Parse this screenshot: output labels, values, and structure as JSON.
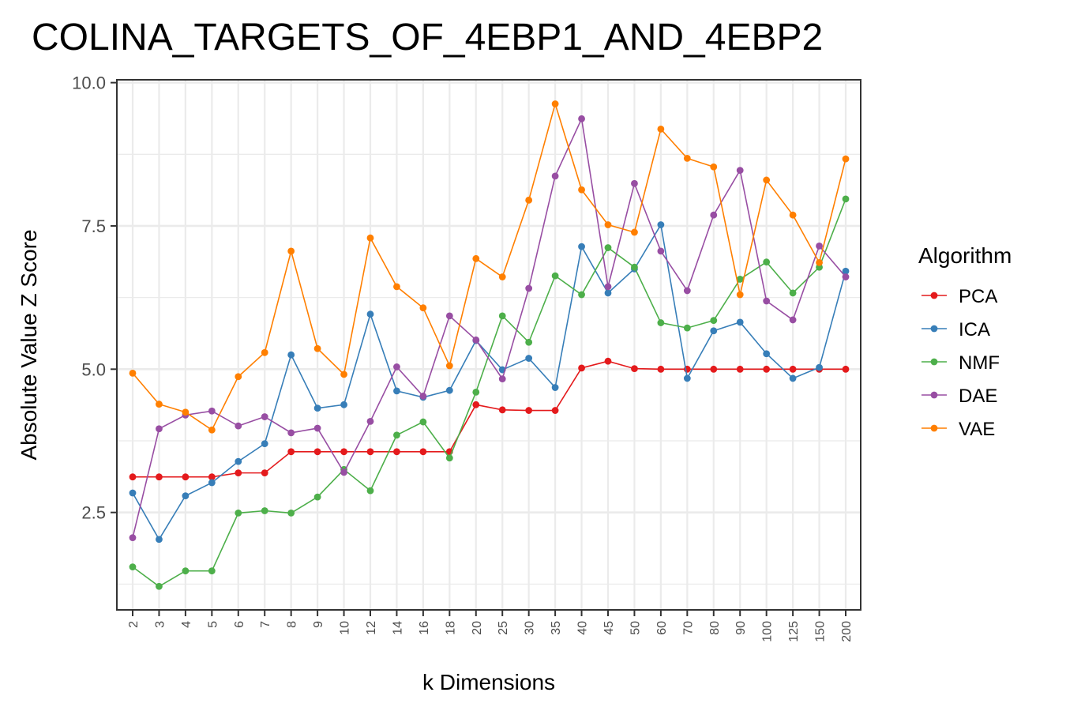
{
  "chart_data": {
    "type": "line",
    "title": "COLINA_TARGETS_OF_4EBP1_AND_4EBP2",
    "xlabel": "k Dimensions",
    "ylabel": "Absolute Value Z Score",
    "categories": [
      "2",
      "3",
      "4",
      "5",
      "6",
      "7",
      "8",
      "9",
      "10",
      "12",
      "14",
      "16",
      "18",
      "20",
      "25",
      "30",
      "35",
      "40",
      "45",
      "50",
      "60",
      "70",
      "80",
      "90",
      "100",
      "125",
      "150",
      "200"
    ],
    "yticks": [
      "2.5",
      "5.0",
      "7.5",
      "10.0"
    ],
    "ylim": [
      0.8,
      10.05
    ],
    "grid": true,
    "legend": {
      "title": "Algorithm",
      "position": "right"
    },
    "series": [
      {
        "name": "PCA",
        "color": "#e41a1c",
        "values": [
          3.12,
          3.12,
          3.12,
          3.12,
          3.19,
          3.19,
          3.56,
          3.56,
          3.56,
          3.56,
          3.56,
          3.56,
          3.56,
          4.38,
          4.29,
          4.28,
          4.28,
          5.02,
          5.14,
          5.01,
          5.0,
          5.0,
          5.0,
          5.0,
          5.0,
          5.0,
          5.0,
          5.0
        ]
      },
      {
        "name": "ICA",
        "color": "#377eb8",
        "values": [
          2.84,
          2.03,
          2.79,
          3.02,
          3.39,
          3.7,
          5.25,
          4.32,
          4.38,
          5.96,
          4.62,
          4.51,
          4.63,
          5.5,
          4.99,
          5.19,
          4.68,
          7.14,
          6.33,
          6.75,
          7.52,
          4.84,
          5.67,
          5.82,
          5.27,
          4.84,
          5.03,
          6.71
        ]
      },
      {
        "name": "NMF",
        "color": "#4daf4a",
        "values": [
          1.55,
          1.21,
          1.48,
          1.48,
          2.49,
          2.53,
          2.49,
          2.77,
          3.25,
          2.88,
          3.85,
          4.08,
          3.45,
          4.6,
          5.93,
          5.47,
          6.63,
          6.3,
          7.12,
          6.78,
          5.81,
          5.72,
          5.85,
          6.57,
          6.87,
          6.33,
          6.78,
          7.97
        ]
      },
      {
        "name": "DAE",
        "color": "#984ea3",
        "values": [
          2.06,
          3.96,
          4.2,
          4.27,
          4.01,
          4.17,
          3.89,
          3.97,
          3.2,
          4.09,
          5.04,
          4.53,
          5.93,
          5.51,
          4.83,
          6.41,
          8.37,
          9.37,
          6.44,
          8.24,
          7.06,
          6.37,
          7.69,
          8.47,
          6.19,
          5.86,
          7.15,
          6.61
        ]
      },
      {
        "name": "VAE",
        "color": "#ff7f00",
        "values": [
          4.93,
          4.39,
          4.25,
          3.94,
          4.87,
          5.29,
          7.06,
          5.36,
          4.91,
          7.29,
          6.44,
          6.07,
          5.06,
          6.93,
          6.61,
          7.95,
          9.63,
          8.13,
          7.52,
          7.39,
          9.19,
          8.68,
          8.53,
          6.3,
          8.3,
          7.69,
          6.86,
          8.67
        ]
      }
    ]
  }
}
